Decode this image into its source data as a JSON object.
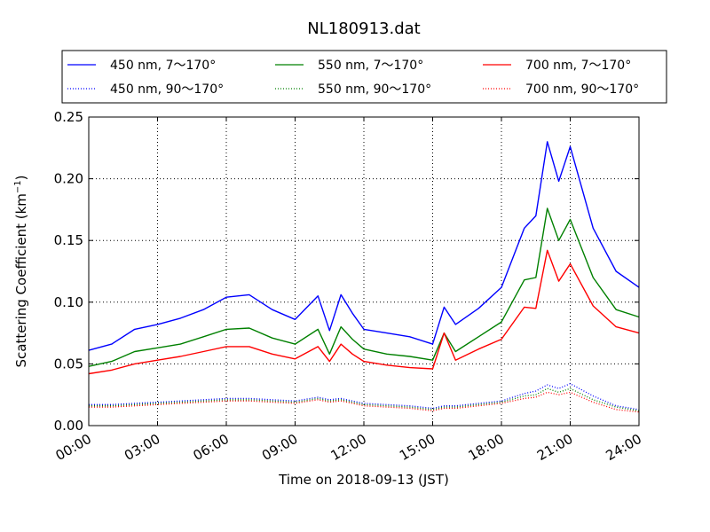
{
  "chart_data": {
    "type": "line",
    "title": "NL180913.dat",
    "xlabel": "Time on 2018-09-13 (JST)",
    "ylabel_main": "Scattering Coefficient (km",
    "ylabel_sup": "−1",
    "ylabel_end": ")",
    "xlim": [
      "00:00",
      "24:00"
    ],
    "ylim": [
      0.0,
      0.25
    ],
    "grid": true,
    "legend_position": "top, outside plot, 3 columns",
    "x_ticks": [
      "00:00",
      "03:00",
      "06:00",
      "09:00",
      "12:00",
      "15:00",
      "18:00",
      "21:00",
      "24:00"
    ],
    "y_ticks": [
      "0.00",
      "0.05",
      "0.10",
      "0.15",
      "0.20",
      "0.25"
    ],
    "x_hours": [
      0,
      1,
      2,
      3,
      4,
      5,
      6,
      7,
      8,
      9,
      10,
      10.5,
      11,
      11.5,
      12,
      13,
      14,
      15,
      15.5,
      16,
      17,
      18,
      19,
      19.5,
      20,
      20.5,
      21,
      22,
      23,
      24
    ],
    "series": [
      {
        "name": "450 nm, 7～170°",
        "color": "#0000ff",
        "style": "solid",
        "values": [
          0.061,
          0.066,
          0.078,
          0.082,
          0.087,
          0.094,
          0.104,
          0.106,
          0.094,
          0.086,
          0.105,
          0.077,
          0.106,
          0.091,
          0.078,
          0.075,
          0.072,
          0.066,
          0.096,
          0.082,
          0.095,
          0.112,
          0.16,
          0.17,
          0.23,
          0.198,
          0.226,
          0.16,
          0.125,
          0.112
        ]
      },
      {
        "name": "550 nm, 7～170°",
        "color": "#008000",
        "style": "solid",
        "values": [
          0.048,
          0.052,
          0.06,
          0.063,
          0.066,
          0.072,
          0.078,
          0.079,
          0.071,
          0.066,
          0.078,
          0.058,
          0.08,
          0.07,
          0.062,
          0.058,
          0.056,
          0.053,
          0.075,
          0.06,
          0.072,
          0.084,
          0.118,
          0.12,
          0.176,
          0.15,
          0.167,
          0.12,
          0.094,
          0.088
        ]
      },
      {
        "name": "700 nm, 7～170°",
        "color": "#ff0000",
        "style": "solid",
        "values": [
          0.042,
          0.045,
          0.05,
          0.053,
          0.056,
          0.06,
          0.064,
          0.064,
          0.058,
          0.054,
          0.064,
          0.052,
          0.066,
          0.058,
          0.052,
          0.049,
          0.047,
          0.046,
          0.075,
          0.053,
          0.062,
          0.07,
          0.096,
          0.095,
          0.142,
          0.117,
          0.131,
          0.097,
          0.08,
          0.075
        ]
      },
      {
        "name": "450 nm, 90～170°",
        "color": "#0000ff",
        "style": "dotted",
        "values": [
          0.017,
          0.017,
          0.018,
          0.019,
          0.02,
          0.021,
          0.022,
          0.022,
          0.021,
          0.02,
          0.023,
          0.021,
          0.022,
          0.02,
          0.018,
          0.017,
          0.016,
          0.014,
          0.016,
          0.016,
          0.018,
          0.02,
          0.026,
          0.028,
          0.033,
          0.03,
          0.034,
          0.024,
          0.016,
          0.013
        ]
      },
      {
        "name": "550 nm, 90～170°",
        "color": "#008000",
        "style": "dotted",
        "values": [
          0.016,
          0.016,
          0.017,
          0.018,
          0.019,
          0.02,
          0.021,
          0.021,
          0.02,
          0.019,
          0.022,
          0.02,
          0.021,
          0.019,
          0.017,
          0.016,
          0.015,
          0.013,
          0.015,
          0.015,
          0.017,
          0.019,
          0.024,
          0.025,
          0.03,
          0.027,
          0.03,
          0.021,
          0.015,
          0.012
        ]
      },
      {
        "name": "700 nm, 90～170°",
        "color": "#ff0000",
        "style": "dotted",
        "values": [
          0.015,
          0.015,
          0.016,
          0.017,
          0.018,
          0.019,
          0.02,
          0.02,
          0.019,
          0.018,
          0.021,
          0.019,
          0.02,
          0.018,
          0.016,
          0.015,
          0.014,
          0.012,
          0.014,
          0.014,
          0.016,
          0.018,
          0.022,
          0.023,
          0.027,
          0.025,
          0.027,
          0.019,
          0.013,
          0.011
        ]
      }
    ]
  }
}
